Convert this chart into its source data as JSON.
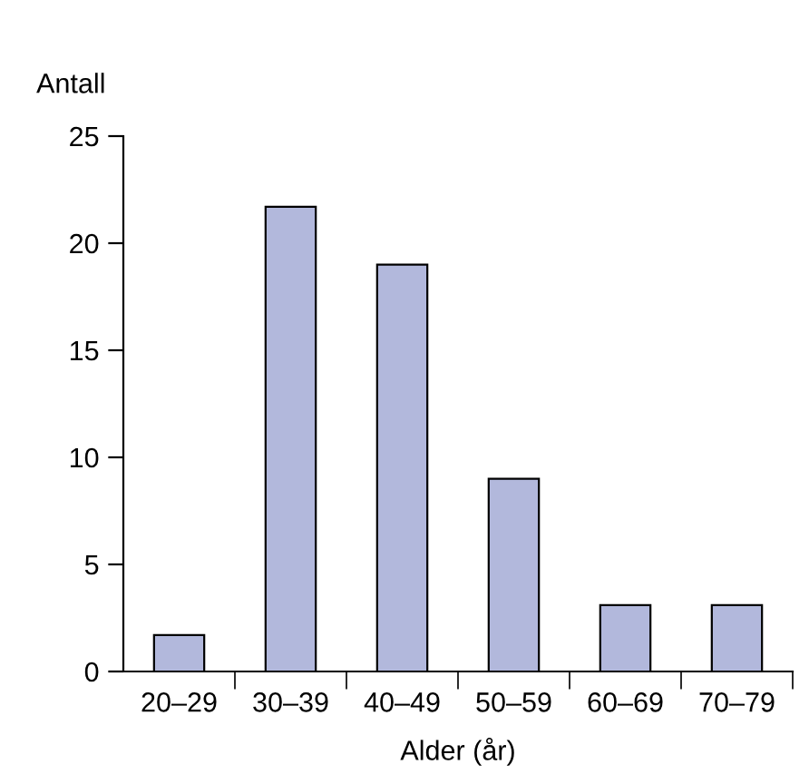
{
  "chart_data": {
    "type": "bar",
    "xlabel": "Alder (år)",
    "ylabel": "Antall",
    "categories": [
      "20–29",
      "30–39",
      "40–49",
      "50–59",
      "60–69",
      "70–79"
    ],
    "values": [
      1.7,
      21.7,
      19.0,
      9.0,
      3.1,
      3.1
    ],
    "color": "#b2b8dc",
    "ylim": [
      0,
      25
    ],
    "yticks": [
      0,
      5,
      10,
      15,
      20,
      25
    ],
    "grid": false,
    "legend": false
  }
}
